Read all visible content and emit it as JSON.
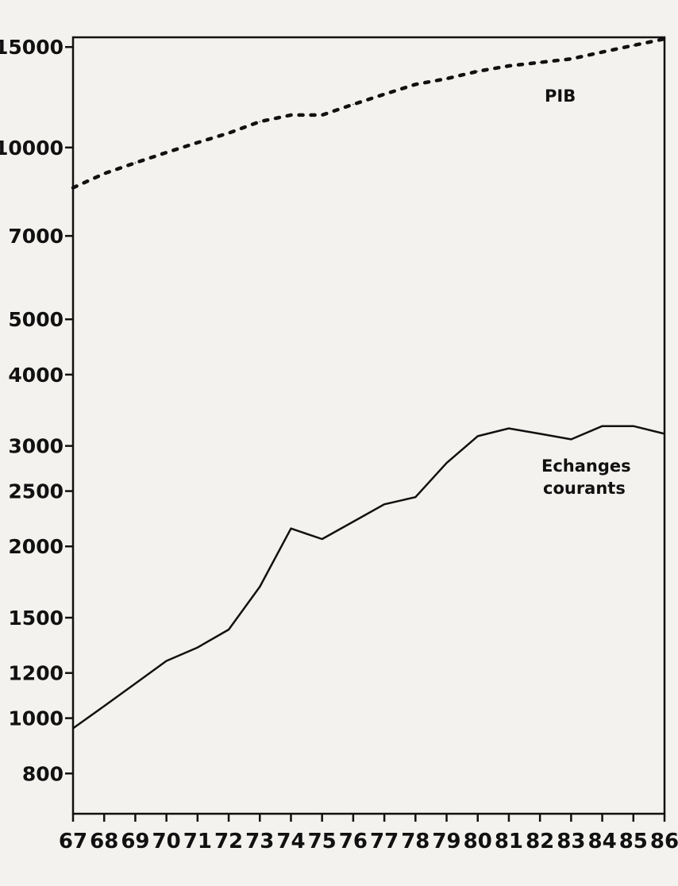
{
  "chart_data": {
    "type": "line",
    "scale": "log",
    "grid": false,
    "legend": "none",
    "x": [
      "67",
      "68",
      "69",
      "70",
      "71",
      "72",
      "73",
      "74",
      "75",
      "76",
      "77",
      "78",
      "79",
      "80",
      "81",
      "82",
      "83",
      "84",
      "85",
      "86"
    ],
    "xticks": [
      "67",
      "68",
      "69",
      "70",
      "71",
      "72",
      "73",
      "74",
      "75",
      "76",
      "77",
      "78",
      "79",
      "80",
      "81",
      "82",
      "83",
      "84",
      "85",
      "86"
    ],
    "yticks": [
      15000,
      10000,
      7000,
      5000,
      4000,
      3000,
      2500,
      2000,
      1500,
      1200,
      1000,
      800
    ],
    "ytick_labels": [
      "15000",
      "10000",
      "7000",
      "5000",
      "4000",
      "3000",
      "2500",
      "2000",
      "1500",
      "1200",
      "1000",
      "800"
    ],
    "ylim": [
      680,
      15600
    ],
    "series": [
      {
        "name": "PIB",
        "style": "dotted",
        "color": "#111111",
        "values": [
          8500,
          9000,
          9400,
          9800,
          10200,
          10600,
          11100,
          11400,
          11400,
          11900,
          12400,
          12900,
          13200,
          13600,
          13900,
          14100,
          14300,
          14700,
          15100,
          15500
        ]
      },
      {
        "name": "Echanges courants",
        "name_lines": [
          "Echanges",
          "courants"
        ],
        "style": "solid",
        "color": "#111111",
        "values": [
          960,
          1050,
          1150,
          1260,
          1330,
          1430,
          1700,
          2150,
          2060,
          2210,
          2370,
          2440,
          2800,
          3120,
          3220,
          3150,
          3080,
          3250,
          3250,
          3150
        ]
      }
    ]
  }
}
